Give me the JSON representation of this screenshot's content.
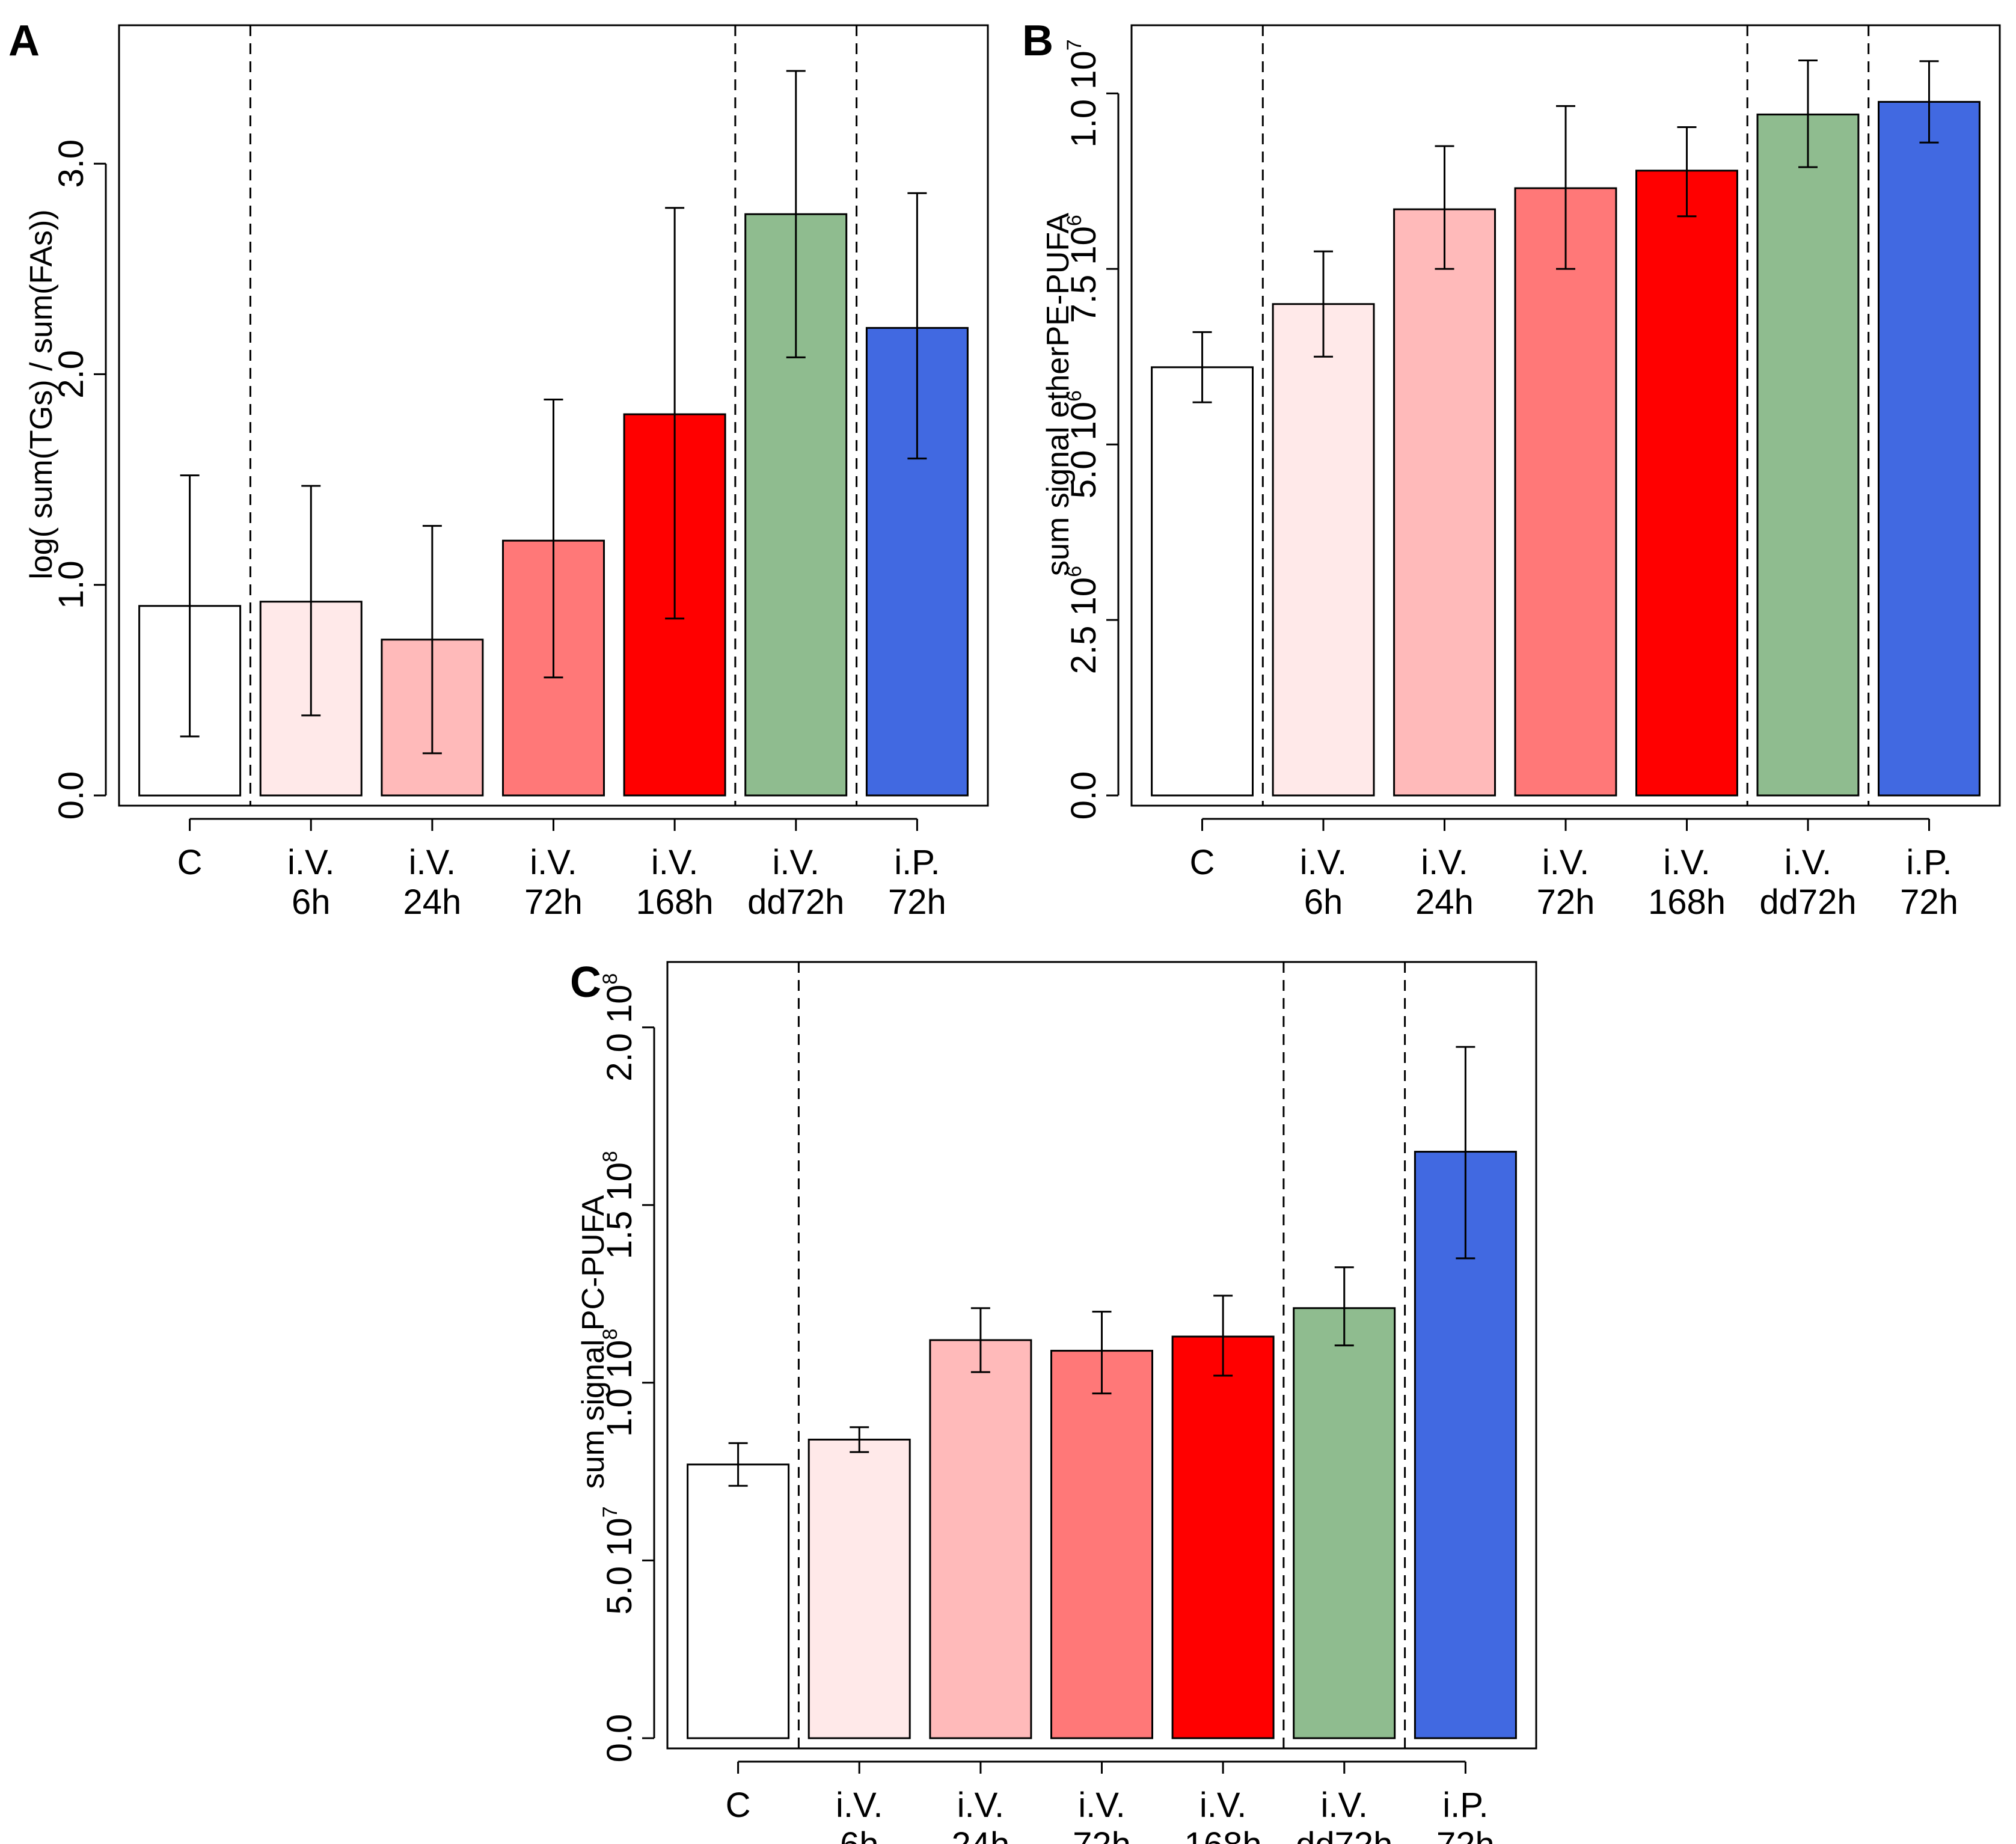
{
  "figure": {
    "categories": [
      [
        "C"
      ],
      [
        "i.V.",
        "6h"
      ],
      [
        "i.V.",
        "24h"
      ],
      [
        "i.V.",
        "72h"
      ],
      [
        "i.V.",
        "168h"
      ],
      [
        "i.V.",
        "dd72h"
      ],
      [
        "i.P.",
        "72h"
      ]
    ],
    "colors": [
      "#ffffff",
      "#ffe9e9",
      "#ffbaba",
      "#ff7878",
      "#ff0000",
      "#8fbc8f",
      "#4169e1"
    ]
  },
  "chart_data": [
    {
      "panel": "A",
      "type": "bar",
      "ylabel": "log( sum(TGs) / sum(FAs))",
      "ylim": [
        0,
        3.6
      ],
      "yticks": [
        0.0,
        1.0,
        2.0,
        3.0
      ],
      "ytick_labels": [
        [
          "0.0"
        ],
        [
          "1.0"
        ],
        [
          "2.0"
        ],
        [
          "3.0"
        ]
      ],
      "values": [
        0.9,
        0.92,
        0.74,
        1.21,
        1.81,
        2.76,
        2.22
      ],
      "err_low": [
        0.28,
        0.38,
        0.2,
        0.56,
        0.84,
        2.08,
        1.6
      ],
      "err_high": [
        1.52,
        1.47,
        1.28,
        1.88,
        2.79,
        3.44,
        2.86
      ],
      "separators_after": [
        0,
        4,
        5
      ]
    },
    {
      "panel": "B",
      "type": "bar",
      "ylabel": "sum signal etherPE-PUFA",
      "ylim": [
        0,
        10800000
      ],
      "yticks": [
        0,
        2500000,
        5000000,
        7500000,
        10000000
      ],
      "ytick_labels": [
        [
          "0.0"
        ],
        [
          "2.5 10",
          "6"
        ],
        [
          "5.0 10",
          "6"
        ],
        [
          "7.5 10",
          "6"
        ],
        [
          "1.0 10",
          "7"
        ]
      ],
      "values": [
        6100000,
        7000000,
        8350000,
        8650000,
        8900000,
        9700000,
        9880000
      ],
      "err_low": [
        5600000,
        6250000,
        7500000,
        7500000,
        8250000,
        8950000,
        9300000
      ],
      "err_high": [
        6600000,
        7750000,
        9250000,
        9820000,
        9520000,
        10470000,
        10460000
      ],
      "separators_after": [
        0,
        4,
        5
      ]
    },
    {
      "panel": "C",
      "type": "bar",
      "ylabel": "sum signal PC-PUFA",
      "ylim": [
        0,
        215000000
      ],
      "yticks": [
        0,
        50000000,
        100000000,
        150000000,
        200000000
      ],
      "ytick_labels": [
        [
          "0.0"
        ],
        [
          "5.0 10",
          "7"
        ],
        [
          "1.0 10",
          "8"
        ],
        [
          "1.5 10",
          "8"
        ],
        [
          "2.0 10",
          "8"
        ]
      ],
      "values": [
        77000000,
        84000000,
        112000000,
        109000000,
        113000000,
        121000000,
        165000000
      ],
      "err_low": [
        71000000,
        80500000,
        103000000,
        97000000,
        102000000,
        110500000,
        135000000
      ],
      "err_high": [
        83000000,
        87500000,
        121000000,
        120000000,
        124500000,
        132500000,
        194500000
      ],
      "separators_after": [
        0,
        4,
        5
      ]
    }
  ]
}
